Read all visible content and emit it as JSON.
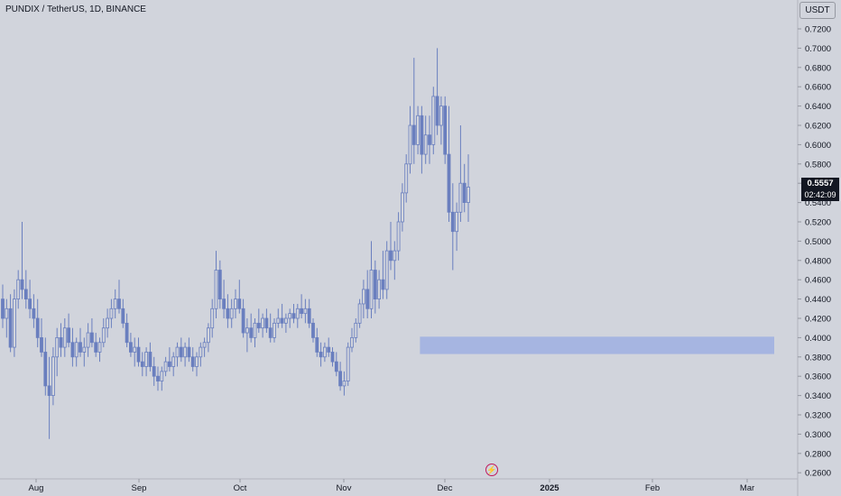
{
  "header": {
    "symbol_title": "PUNDIX / TetherUS, 1D, BINANCE"
  },
  "price_axis": {
    "currency": "USDT"
  },
  "last_price": {
    "price": "0.5557",
    "countdown": "02:42:09"
  },
  "colors": {
    "background": "#d1d4dc",
    "candle": "#6a7fbf",
    "zone": "#a3b3e0",
    "text": "#131722"
  },
  "icons": {
    "bottom_marker": "lightning-icon"
  },
  "chart_data": {
    "type": "candlestick",
    "title": "PUNDIX / TetherUS, 1D, BINANCE",
    "ylabel": "USDT",
    "ylim": [
      0.25,
      0.73
    ],
    "y_ticks": [
      "0.7200",
      "0.7000",
      "0.6800",
      "0.6600",
      "0.6400",
      "0.6200",
      "0.6000",
      "0.5800",
      "0.5600",
      "0.5400",
      "0.5200",
      "0.5000",
      "0.4800",
      "0.4600",
      "0.4400",
      "0.4200",
      "0.4000",
      "0.3800",
      "0.3600",
      "0.3400",
      "0.3200",
      "0.3000",
      "0.2800",
      "0.2600"
    ],
    "x_ticks": [
      "Aug",
      "Sep",
      "Oct",
      "Nov",
      "Dec",
      "2025",
      "Feb",
      "Mar"
    ],
    "grid": false,
    "last_price": 0.5557,
    "zone": {
      "low": 0.383,
      "high": 0.401,
      "from_index": 108
    },
    "candles": [
      [
        0.44,
        0.455,
        0.41,
        0.42
      ],
      [
        0.42,
        0.44,
        0.4,
        0.43
      ],
      [
        0.43,
        0.445,
        0.385,
        0.39
      ],
      [
        0.39,
        0.45,
        0.38,
        0.44
      ],
      [
        0.44,
        0.47,
        0.43,
        0.46
      ],
      [
        0.46,
        0.52,
        0.44,
        0.45
      ],
      [
        0.45,
        0.47,
        0.43,
        0.44
      ],
      [
        0.44,
        0.46,
        0.42,
        0.43
      ],
      [
        0.43,
        0.445,
        0.41,
        0.42
      ],
      [
        0.42,
        0.44,
        0.39,
        0.4
      ],
      [
        0.4,
        0.42,
        0.38,
        0.385
      ],
      [
        0.385,
        0.4,
        0.34,
        0.35
      ],
      [
        0.35,
        0.38,
        0.295,
        0.34
      ],
      [
        0.34,
        0.39,
        0.33,
        0.38
      ],
      [
        0.38,
        0.41,
        0.36,
        0.4
      ],
      [
        0.4,
        0.415,
        0.38,
        0.39
      ],
      [
        0.39,
        0.42,
        0.38,
        0.41
      ],
      [
        0.41,
        0.425,
        0.39,
        0.395
      ],
      [
        0.395,
        0.41,
        0.37,
        0.38
      ],
      [
        0.38,
        0.4,
        0.37,
        0.395
      ],
      [
        0.395,
        0.41,
        0.38,
        0.385
      ],
      [
        0.385,
        0.4,
        0.37,
        0.39
      ],
      [
        0.39,
        0.415,
        0.38,
        0.405
      ],
      [
        0.405,
        0.42,
        0.39,
        0.395
      ],
      [
        0.395,
        0.405,
        0.38,
        0.385
      ],
      [
        0.385,
        0.4,
        0.375,
        0.395
      ],
      [
        0.395,
        0.42,
        0.39,
        0.41
      ],
      [
        0.41,
        0.43,
        0.4,
        0.42
      ],
      [
        0.42,
        0.44,
        0.41,
        0.43
      ],
      [
        0.43,
        0.45,
        0.42,
        0.44
      ],
      [
        0.44,
        0.46,
        0.425,
        0.43
      ],
      [
        0.43,
        0.44,
        0.41,
        0.415
      ],
      [
        0.415,
        0.425,
        0.39,
        0.395
      ],
      [
        0.395,
        0.405,
        0.38,
        0.385
      ],
      [
        0.385,
        0.4,
        0.37,
        0.39
      ],
      [
        0.39,
        0.4,
        0.37,
        0.375
      ],
      [
        0.375,
        0.385,
        0.36,
        0.37
      ],
      [
        0.37,
        0.39,
        0.36,
        0.385
      ],
      [
        0.385,
        0.395,
        0.365,
        0.37
      ],
      [
        0.37,
        0.38,
        0.35,
        0.36
      ],
      [
        0.36,
        0.37,
        0.345,
        0.355
      ],
      [
        0.355,
        0.37,
        0.345,
        0.365
      ],
      [
        0.365,
        0.38,
        0.36,
        0.375
      ],
      [
        0.375,
        0.39,
        0.365,
        0.37
      ],
      [
        0.37,
        0.385,
        0.36,
        0.38
      ],
      [
        0.38,
        0.395,
        0.37,
        0.39
      ],
      [
        0.39,
        0.4,
        0.375,
        0.38
      ],
      [
        0.38,
        0.395,
        0.37,
        0.39
      ],
      [
        0.39,
        0.4,
        0.375,
        0.38
      ],
      [
        0.38,
        0.39,
        0.365,
        0.37
      ],
      [
        0.37,
        0.385,
        0.36,
        0.38
      ],
      [
        0.38,
        0.395,
        0.37,
        0.39
      ],
      [
        0.39,
        0.4,
        0.38,
        0.395
      ],
      [
        0.395,
        0.415,
        0.385,
        0.41
      ],
      [
        0.41,
        0.44,
        0.4,
        0.43
      ],
      [
        0.43,
        0.49,
        0.42,
        0.47
      ],
      [
        0.47,
        0.48,
        0.43,
        0.44
      ],
      [
        0.44,
        0.46,
        0.42,
        0.43
      ],
      [
        0.43,
        0.445,
        0.41,
        0.42
      ],
      [
        0.42,
        0.44,
        0.41,
        0.43
      ],
      [
        0.43,
        0.45,
        0.42,
        0.44
      ],
      [
        0.44,
        0.46,
        0.425,
        0.43
      ],
      [
        0.43,
        0.44,
        0.4,
        0.405
      ],
      [
        0.405,
        0.42,
        0.385,
        0.41
      ],
      [
        0.41,
        0.425,
        0.395,
        0.4
      ],
      [
        0.4,
        0.42,
        0.39,
        0.415
      ],
      [
        0.415,
        0.43,
        0.405,
        0.41
      ],
      [
        0.41,
        0.425,
        0.4,
        0.42
      ],
      [
        0.42,
        0.43,
        0.405,
        0.41
      ],
      [
        0.41,
        0.425,
        0.395,
        0.4
      ],
      [
        0.4,
        0.42,
        0.395,
        0.415
      ],
      [
        0.415,
        0.43,
        0.41,
        0.42
      ],
      [
        0.42,
        0.435,
        0.41,
        0.415
      ],
      [
        0.415,
        0.425,
        0.405,
        0.42
      ],
      [
        0.42,
        0.43,
        0.41,
        0.425
      ],
      [
        0.425,
        0.435,
        0.415,
        0.42
      ],
      [
        0.42,
        0.435,
        0.41,
        0.43
      ],
      [
        0.43,
        0.445,
        0.42,
        0.425
      ],
      [
        0.425,
        0.44,
        0.415,
        0.43
      ],
      [
        0.43,
        0.44,
        0.41,
        0.415
      ],
      [
        0.415,
        0.42,
        0.395,
        0.4
      ],
      [
        0.4,
        0.41,
        0.38,
        0.385
      ],
      [
        0.385,
        0.395,
        0.37,
        0.38
      ],
      [
        0.38,
        0.395,
        0.375,
        0.39
      ],
      [
        0.39,
        0.4,
        0.38,
        0.385
      ],
      [
        0.385,
        0.39,
        0.37,
        0.375
      ],
      [
        0.375,
        0.385,
        0.36,
        0.365
      ],
      [
        0.365,
        0.375,
        0.345,
        0.35
      ],
      [
        0.35,
        0.365,
        0.34,
        0.355
      ],
      [
        0.355,
        0.395,
        0.35,
        0.39
      ],
      [
        0.39,
        0.41,
        0.385,
        0.4
      ],
      [
        0.4,
        0.42,
        0.395,
        0.415
      ],
      [
        0.415,
        0.44,
        0.41,
        0.435
      ],
      [
        0.435,
        0.46,
        0.42,
        0.45
      ],
      [
        0.45,
        0.47,
        0.42,
        0.43
      ],
      [
        0.43,
        0.5,
        0.42,
        0.47
      ],
      [
        0.47,
        0.48,
        0.425,
        0.44
      ],
      [
        0.44,
        0.47,
        0.43,
        0.46
      ],
      [
        0.46,
        0.49,
        0.44,
        0.45
      ],
      [
        0.45,
        0.5,
        0.44,
        0.49
      ],
      [
        0.49,
        0.52,
        0.47,
        0.48
      ],
      [
        0.48,
        0.5,
        0.46,
        0.49
      ],
      [
        0.49,
        0.53,
        0.48,
        0.52
      ],
      [
        0.52,
        0.56,
        0.51,
        0.55
      ],
      [
        0.55,
        0.59,
        0.54,
        0.58
      ],
      [
        0.58,
        0.64,
        0.57,
        0.62
      ],
      [
        0.62,
        0.69,
        0.58,
        0.6
      ],
      [
        0.6,
        0.64,
        0.59,
        0.63
      ],
      [
        0.63,
        0.64,
        0.57,
        0.59
      ],
      [
        0.59,
        0.63,
        0.58,
        0.61
      ],
      [
        0.61,
        0.63,
        0.58,
        0.6
      ],
      [
        0.6,
        0.66,
        0.59,
        0.65
      ],
      [
        0.65,
        0.7,
        0.61,
        0.62
      ],
      [
        0.62,
        0.65,
        0.6,
        0.64
      ],
      [
        0.64,
        0.65,
        0.58,
        0.59
      ],
      [
        0.59,
        0.64,
        0.52,
        0.53
      ],
      [
        0.53,
        0.56,
        0.47,
        0.51
      ],
      [
        0.51,
        0.54,
        0.49,
        0.53
      ],
      [
        0.53,
        0.62,
        0.52,
        0.56
      ],
      [
        0.56,
        0.58,
        0.53,
        0.54
      ],
      [
        0.54,
        0.59,
        0.52,
        0.556
      ]
    ]
  }
}
